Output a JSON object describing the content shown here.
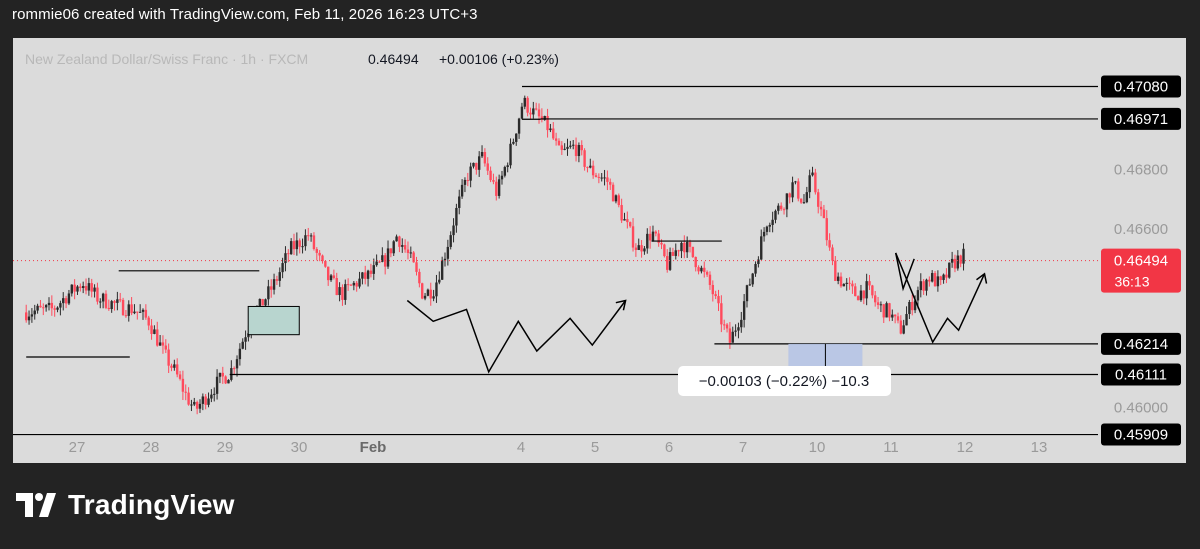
{
  "header": {
    "credit": "rommie06 created with TradingView.com, Feb 11, 2026 16:23 UTC+3"
  },
  "footer": {
    "brand": "TradingView",
    "logo_icon": "tradingview-logo-icon"
  },
  "chart_data": {
    "type": "candlestick",
    "symbol": "New Zealand Dollar/Swiss Franc · 1h · FXCM",
    "last_price": "0.46494",
    "change": "+0.00106 (+0.23%)",
    "countdown": "36:13",
    "y_range": [
      0.4582,
      0.4725
    ],
    "y_ticks": [
      {
        "value": 0.468,
        "label": "0.46800"
      },
      {
        "value": 0.466,
        "label": "0.46600"
      },
      {
        "value": 0.46,
        "label": "0.46000"
      }
    ],
    "x_ticks": [
      {
        "pos": 0.5,
        "label": "27"
      },
      {
        "pos": 1.5,
        "label": "28"
      },
      {
        "pos": 2.5,
        "label": "29"
      },
      {
        "pos": 3.5,
        "label": "30"
      },
      {
        "pos": 4.5,
        "label": "Feb"
      },
      {
        "pos": 6.5,
        "label": "4"
      },
      {
        "pos": 7.5,
        "label": "5"
      },
      {
        "pos": 8.5,
        "label": "6"
      },
      {
        "pos": 9.5,
        "label": "7"
      },
      {
        "pos": 10.5,
        "label": "10"
      },
      {
        "pos": 11.5,
        "label": "11"
      },
      {
        "pos": 12.5,
        "label": "12"
      },
      {
        "pos": 13.5,
        "label": "13"
      }
    ],
    "price_levels": [
      {
        "value": 0.4708,
        "label": "0.47080",
        "x_from": 6.0
      },
      {
        "value": 0.46971,
        "label": "0.46971",
        "x_from": 6.25
      },
      {
        "value": 0.46214,
        "label": "0.46214",
        "x_from": 8.6
      },
      {
        "value": 0.46111,
        "label": "0.46111",
        "x_from": 2.05
      },
      {
        "value": 0.45909,
        "label": "0.45909",
        "x_from": -0.2
      }
    ],
    "measure": {
      "label": "−0.00103 (−0.22%) −10.3",
      "x_range": [
        9.6,
        10.6
      ],
      "y_range": [
        0.46111,
        0.46214
      ]
    },
    "grid": false,
    "accent_up": "#2b2b2b",
    "accent_down": "#ff4a5c",
    "price_color": "#f23645"
  }
}
